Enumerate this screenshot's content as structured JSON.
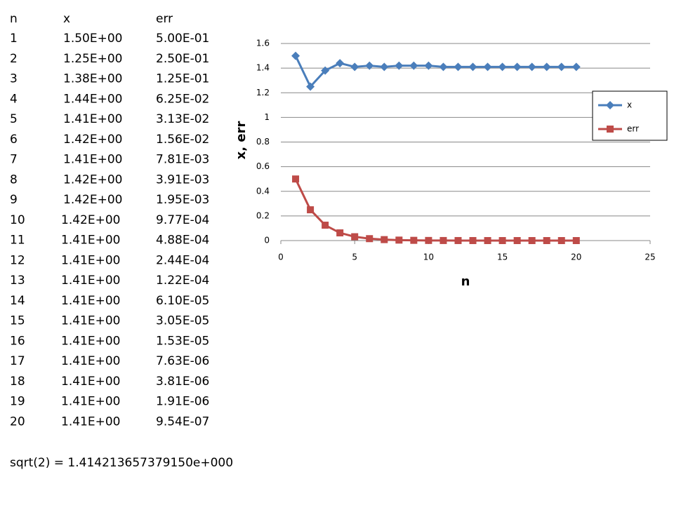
{
  "table": {
    "header": [
      "n",
      "x",
      "err"
    ],
    "rows": [
      [
        "1",
        "1.50E+00",
        "5.00E-01"
      ],
      [
        "2",
        "1.25E+00",
        "2.50E-01"
      ],
      [
        "3",
        "1.38E+00",
        "1.25E-01"
      ],
      [
        "4",
        "1.44E+00",
        "6.25E-02"
      ],
      [
        "5",
        "1.41E+00",
        "3.13E-02"
      ],
      [
        "6",
        "1.42E+00",
        "1.56E-02"
      ],
      [
        "7",
        "1.41E+00",
        "7.81E-03"
      ],
      [
        "8",
        "1.42E+00",
        "3.91E-03"
      ],
      [
        "9",
        "1.42E+00",
        "1.95E-03"
      ],
      [
        "10",
        "1.42E+00",
        "9.77E-04"
      ],
      [
        "11",
        "1.41E+00",
        "4.88E-04"
      ],
      [
        "12",
        "1.41E+00",
        "2.44E-04"
      ],
      [
        "13",
        "1.41E+00",
        "1.22E-04"
      ],
      [
        "14",
        "1.41E+00",
        "6.10E-05"
      ],
      [
        "15",
        "1.41E+00",
        "3.05E-05"
      ],
      [
        "16",
        "1.41E+00",
        "1.53E-05"
      ],
      [
        "17",
        "1.41E+00",
        "7.63E-06"
      ],
      [
        "18",
        "1.41E+00",
        "3.81E-06"
      ],
      [
        "19",
        "1.41E+00",
        "1.91E-06"
      ],
      [
        "20",
        "1.41E+00",
        "9.54E-07"
      ]
    ]
  },
  "note": "sqrt(2) = 1.414213657379150e+000",
  "chart_data": {
    "type": "line",
    "x_label": "n",
    "y_label": "x, err",
    "x": [
      1,
      2,
      3,
      4,
      5,
      6,
      7,
      8,
      9,
      10,
      11,
      12,
      13,
      14,
      15,
      16,
      17,
      18,
      19,
      20
    ],
    "series": [
      {
        "name": "x",
        "color": "#4a7ebb",
        "marker": "diamond",
        "values": [
          1.5,
          1.25,
          1.38,
          1.44,
          1.41,
          1.42,
          1.41,
          1.42,
          1.42,
          1.42,
          1.41,
          1.41,
          1.41,
          1.41,
          1.41,
          1.41,
          1.41,
          1.41,
          1.41,
          1.41
        ]
      },
      {
        "name": "err",
        "color": "#be4b48",
        "marker": "square",
        "values": [
          0.5,
          0.25,
          0.125,
          0.0625,
          0.0313,
          0.0156,
          0.00781,
          0.00391,
          0.00195,
          0.000977,
          0.000488,
          0.000244,
          0.000122,
          6.1e-05,
          3.05e-05,
          1.53e-05,
          7.63e-06,
          3.81e-06,
          1.91e-06,
          9.54e-07
        ]
      }
    ],
    "xlim": [
      0,
      25
    ],
    "xticks": [
      0,
      5,
      10,
      15,
      20,
      25
    ],
    "ylim": [
      0,
      1.6
    ],
    "yticks": [
      0,
      0.2,
      0.4,
      0.6,
      0.8,
      1,
      1.2,
      1.4,
      1.6
    ],
    "grid": true,
    "legend": "right"
  }
}
